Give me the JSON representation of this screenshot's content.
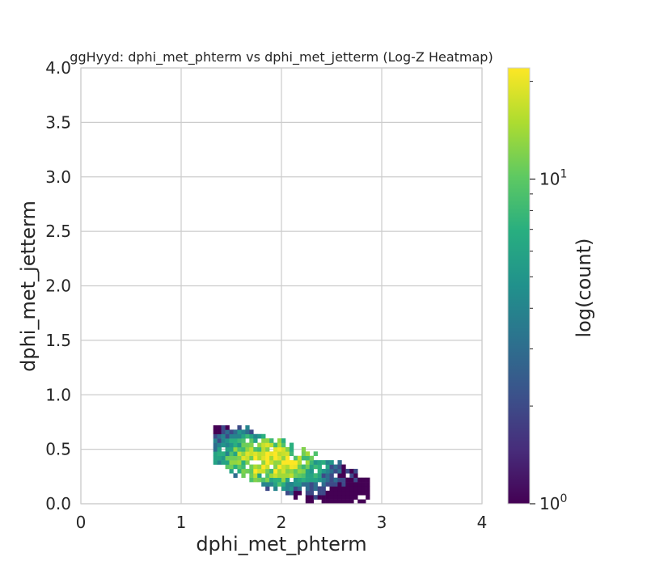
{
  "chart_data": {
    "type": "heatmap",
    "title": "ggHyyd: dphi_met_phterm vs dphi_met_jetterm (Log-Z Heatmap)",
    "xlabel": "dphi_met_phterm",
    "ylabel": "dphi_met_jetterm",
    "xlim": [
      0,
      4
    ],
    "ylim": [
      0,
      4
    ],
    "x_ticks": [
      "0",
      "1",
      "2",
      "3",
      "4"
    ],
    "y_ticks": [
      "0.0",
      "0.5",
      "1.0",
      "1.5",
      "2.0",
      "2.5",
      "3.0",
      "3.5",
      "4.0"
    ],
    "grid": true,
    "colormap": "viridis",
    "colorbar": {
      "label": "log(count)",
      "scale": "log",
      "range": [
        1,
        22
      ],
      "major_ticks": [
        {
          "value": 1,
          "base": "10",
          "exp": "0"
        },
        {
          "value": 10,
          "base": "10",
          "exp": "1"
        }
      ],
      "minor_ticks": [
        2,
        3,
        4,
        5,
        6,
        7,
        8,
        9,
        20
      ]
    },
    "bin_width": 0.04,
    "bin_height": 0.04,
    "cluster": {
      "x_range": [
        1.32,
        2.88
      ],
      "y_range": [
        0.0,
        0.72
      ],
      "peak": {
        "x": 1.9,
        "y": 0.4,
        "count": 20
      },
      "description_values": "bin counts from 1 to ~20"
    }
  }
}
